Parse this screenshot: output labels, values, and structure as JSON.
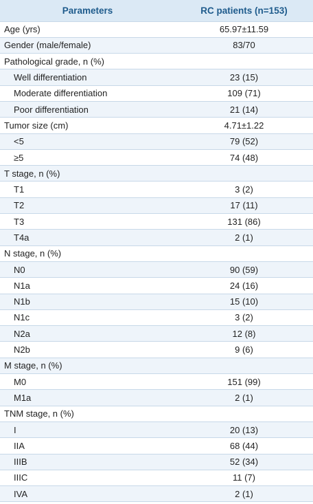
{
  "header": {
    "col1": "Parameters",
    "col2": "RC patients (n=153)"
  },
  "rows": [
    {
      "label": "Age (yrs)",
      "value": "65.97±11.59",
      "indent": false,
      "shade": false
    },
    {
      "label": "Gender (male/female)",
      "value": "83/70",
      "indent": false,
      "shade": true
    },
    {
      "label": "Pathological grade, n (%)",
      "value": "",
      "indent": false,
      "shade": false
    },
    {
      "label": "Well differentiation",
      "value": "23 (15)",
      "indent": true,
      "shade": true
    },
    {
      "label": "Moderate differentiation",
      "value": "109 (71)",
      "indent": true,
      "shade": false
    },
    {
      "label": "Poor differentiation",
      "value": "21 (14)",
      "indent": true,
      "shade": true
    },
    {
      "label": "Tumor size (cm)",
      "value": "4.71±1.22",
      "indent": false,
      "shade": false
    },
    {
      "label": "<5",
      "value": "79 (52)",
      "indent": true,
      "shade": true
    },
    {
      "label": "≥5",
      "value": "74 (48)",
      "indent": true,
      "shade": false
    },
    {
      "label": "T stage, n (%)",
      "value": "",
      "indent": false,
      "shade": true
    },
    {
      "label": "T1",
      "value": "3 (2)",
      "indent": true,
      "shade": false
    },
    {
      "label": "T2",
      "value": "17 (11)",
      "indent": true,
      "shade": true
    },
    {
      "label": "T3",
      "value": "131 (86)",
      "indent": true,
      "shade": false
    },
    {
      "label": "T4a",
      "value": "2 (1)",
      "indent": true,
      "shade": true
    },
    {
      "label": "N stage, n (%)",
      "value": "",
      "indent": false,
      "shade": false
    },
    {
      "label": "N0",
      "value": "90 (59)",
      "indent": true,
      "shade": true
    },
    {
      "label": "N1a",
      "value": "24 (16)",
      "indent": true,
      "shade": false
    },
    {
      "label": "N1b",
      "value": "15 (10)",
      "indent": true,
      "shade": true
    },
    {
      "label": "N1c",
      "value": "3 (2)",
      "indent": true,
      "shade": false
    },
    {
      "label": "N2a",
      "value": "12 (8)",
      "indent": true,
      "shade": true
    },
    {
      "label": "N2b",
      "value": "9 (6)",
      "indent": true,
      "shade": false
    },
    {
      "label": "M stage, n (%)",
      "value": "",
      "indent": false,
      "shade": true
    },
    {
      "label": "M0",
      "value": "151 (99)",
      "indent": true,
      "shade": false
    },
    {
      "label": "M1a",
      "value": "2 (1)",
      "indent": true,
      "shade": true
    },
    {
      "label": "TNM stage, n (%)",
      "value": "",
      "indent": false,
      "shade": false
    },
    {
      "label": "I",
      "value": "20 (13)",
      "indent": true,
      "shade": true
    },
    {
      "label": "IIA",
      "value": "68 (44)",
      "indent": true,
      "shade": false
    },
    {
      "label": "IIIB",
      "value": "52 (34)",
      "indent": true,
      "shade": true
    },
    {
      "label": "IIIC",
      "value": "11 (7)",
      "indent": true,
      "shade": false
    },
    {
      "label": "IVA",
      "value": "2 (1)",
      "indent": true,
      "shade": true
    }
  ],
  "colors": {
    "header_bg": "#dbe9f5",
    "header_text": "#1e5b8c",
    "row_shade": "#eef4fa",
    "rule": "#c7d8e8"
  }
}
